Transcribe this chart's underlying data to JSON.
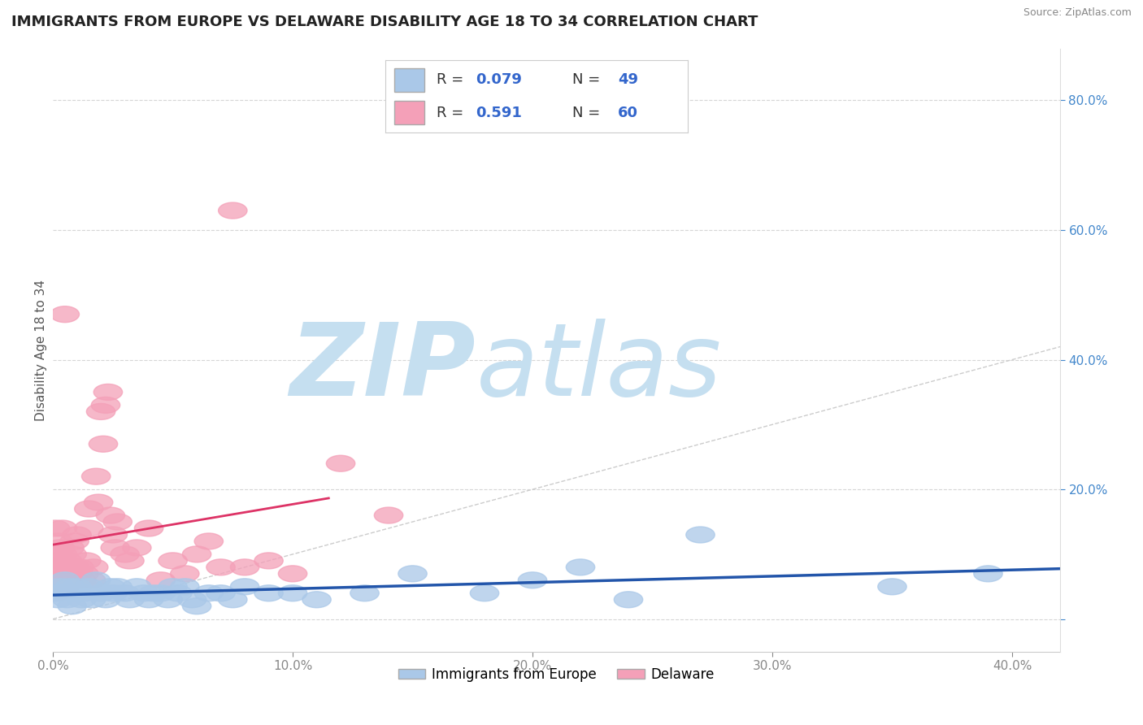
{
  "title": "IMMIGRANTS FROM EUROPE VS DELAWARE DISABILITY AGE 18 TO 34 CORRELATION CHART",
  "source": "Source: ZipAtlas.com",
  "ylabel": "Disability Age 18 to 34",
  "legend_bottom": [
    "Immigrants from Europe",
    "Delaware"
  ],
  "r_blue": "0.079",
  "n_blue": "49",
  "r_pink": "0.591",
  "n_pink": "60",
  "xlim": [
    0.0,
    0.42
  ],
  "ylim": [
    -0.05,
    0.88
  ],
  "yticks": [
    0.0,
    0.2,
    0.4,
    0.6,
    0.8
  ],
  "xticks": [
    0.0,
    0.1,
    0.2,
    0.3,
    0.4
  ],
  "blue_scatter": [
    [
      0.001,
      0.04
    ],
    [
      0.002,
      0.03
    ],
    [
      0.003,
      0.05
    ],
    [
      0.004,
      0.04
    ],
    [
      0.005,
      0.06
    ],
    [
      0.006,
      0.03
    ],
    [
      0.007,
      0.05
    ],
    [
      0.008,
      0.02
    ],
    [
      0.009,
      0.04
    ],
    [
      0.01,
      0.05
    ],
    [
      0.012,
      0.03
    ],
    [
      0.013,
      0.04
    ],
    [
      0.015,
      0.05
    ],
    [
      0.016,
      0.03
    ],
    [
      0.018,
      0.06
    ],
    [
      0.02,
      0.04
    ],
    [
      0.022,
      0.03
    ],
    [
      0.024,
      0.05
    ],
    [
      0.025,
      0.04
    ],
    [
      0.027,
      0.05
    ],
    [
      0.03,
      0.04
    ],
    [
      0.032,
      0.03
    ],
    [
      0.035,
      0.05
    ],
    [
      0.038,
      0.04
    ],
    [
      0.04,
      0.03
    ],
    [
      0.042,
      0.04
    ],
    [
      0.045,
      0.04
    ],
    [
      0.048,
      0.03
    ],
    [
      0.05,
      0.05
    ],
    [
      0.052,
      0.04
    ],
    [
      0.055,
      0.05
    ],
    [
      0.058,
      0.03
    ],
    [
      0.06,
      0.02
    ],
    [
      0.065,
      0.04
    ],
    [
      0.07,
      0.04
    ],
    [
      0.075,
      0.03
    ],
    [
      0.08,
      0.05
    ],
    [
      0.09,
      0.04
    ],
    [
      0.1,
      0.04
    ],
    [
      0.11,
      0.03
    ],
    [
      0.13,
      0.04
    ],
    [
      0.15,
      0.07
    ],
    [
      0.18,
      0.04
    ],
    [
      0.2,
      0.06
    ],
    [
      0.22,
      0.08
    ],
    [
      0.24,
      0.03
    ],
    [
      0.27,
      0.13
    ],
    [
      0.35,
      0.05
    ],
    [
      0.39,
      0.07
    ]
  ],
  "pink_scatter": [
    [
      0.001,
      0.04
    ],
    [
      0.001,
      0.07
    ],
    [
      0.001,
      0.1
    ],
    [
      0.001,
      0.14
    ],
    [
      0.002,
      0.06
    ],
    [
      0.002,
      0.09
    ],
    [
      0.002,
      0.12
    ],
    [
      0.003,
      0.05
    ],
    [
      0.003,
      0.08
    ],
    [
      0.003,
      0.11
    ],
    [
      0.004,
      0.06
    ],
    [
      0.004,
      0.1
    ],
    [
      0.004,
      0.14
    ],
    [
      0.005,
      0.05
    ],
    [
      0.005,
      0.08
    ],
    [
      0.005,
      0.47
    ],
    [
      0.006,
      0.06
    ],
    [
      0.006,
      0.09
    ],
    [
      0.007,
      0.07
    ],
    [
      0.007,
      0.11
    ],
    [
      0.008,
      0.06
    ],
    [
      0.008,
      0.1
    ],
    [
      0.009,
      0.08
    ],
    [
      0.009,
      0.12
    ],
    [
      0.01,
      0.07
    ],
    [
      0.01,
      0.13
    ],
    [
      0.011,
      0.08
    ],
    [
      0.012,
      0.06
    ],
    [
      0.013,
      0.07
    ],
    [
      0.014,
      0.09
    ],
    [
      0.015,
      0.14
    ],
    [
      0.015,
      0.17
    ],
    [
      0.016,
      0.06
    ],
    [
      0.017,
      0.08
    ],
    [
      0.018,
      0.22
    ],
    [
      0.019,
      0.18
    ],
    [
      0.02,
      0.32
    ],
    [
      0.021,
      0.27
    ],
    [
      0.022,
      0.33
    ],
    [
      0.023,
      0.35
    ],
    [
      0.024,
      0.16
    ],
    [
      0.025,
      0.13
    ],
    [
      0.026,
      0.11
    ],
    [
      0.027,
      0.15
    ],
    [
      0.03,
      0.1
    ],
    [
      0.032,
      0.09
    ],
    [
      0.035,
      0.11
    ],
    [
      0.04,
      0.14
    ],
    [
      0.045,
      0.06
    ],
    [
      0.05,
      0.09
    ],
    [
      0.055,
      0.07
    ],
    [
      0.06,
      0.1
    ],
    [
      0.065,
      0.12
    ],
    [
      0.07,
      0.08
    ],
    [
      0.075,
      0.63
    ],
    [
      0.08,
      0.08
    ],
    [
      0.09,
      0.09
    ],
    [
      0.1,
      0.07
    ],
    [
      0.12,
      0.24
    ],
    [
      0.14,
      0.16
    ]
  ],
  "blue_color": "#aac8e8",
  "pink_color": "#f4a0b8",
  "blue_line_color": "#2255aa",
  "pink_line_color": "#dd3366",
  "diag_color": "#cccccc",
  "background_color": "#ffffff",
  "watermark_zip": "ZIP",
  "watermark_atlas": "atlas",
  "watermark_color_zip": "#c5dff0",
  "watermark_color_atlas": "#c5dff0",
  "title_fontsize": 13,
  "axis_label_fontsize": 11,
  "tick_fontsize": 11,
  "legend_fontsize": 13
}
